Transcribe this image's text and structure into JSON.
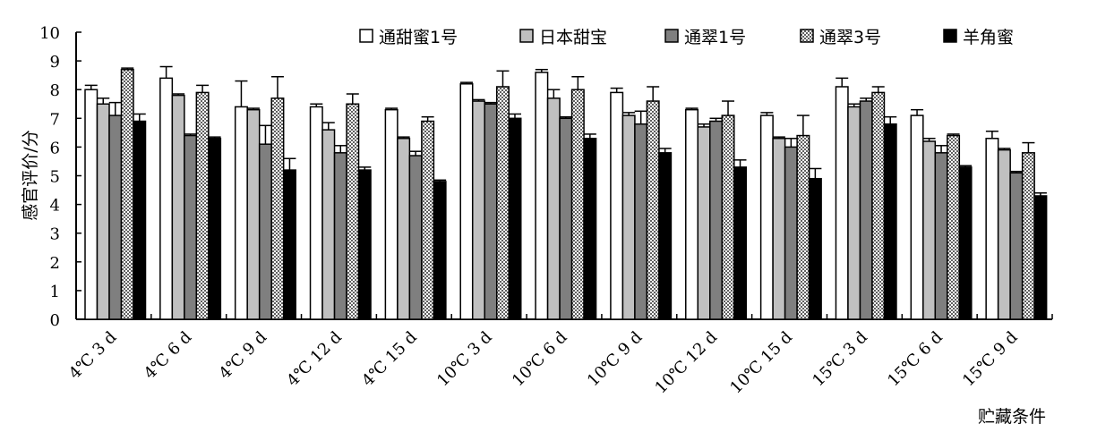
{
  "chart_data": {
    "type": "bar",
    "title": "",
    "xlabel": "贮藏条件",
    "ylabel": "感官评价/分",
    "ylim": [
      0,
      10
    ],
    "yticks": [
      0,
      1,
      2,
      3,
      4,
      5,
      6,
      7,
      8,
      9,
      10
    ],
    "grid": false,
    "legend_position": "top-right",
    "categories": [
      "4℃ 3 d",
      "4℃ 6 d",
      "4℃ 9 d",
      "4℃ 12 d",
      "4℃ 15 d",
      "10℃ 3 d",
      "10℃ 6 d",
      "10℃ 9 d",
      "10℃ 12 d",
      "10℃ 15 d",
      "15℃ 3 d",
      "15℃ 6 d",
      "15℃ 9 d"
    ],
    "series": [
      {
        "name": "通甜蜜1号",
        "fill": "#ffffff",
        "pattern": "solid",
        "values": [
          8.0,
          8.4,
          7.4,
          7.4,
          7.3,
          8.2,
          8.6,
          7.9,
          7.3,
          7.1,
          8.1,
          7.1,
          6.3
        ],
        "errors": [
          0.15,
          0.4,
          0.9,
          0.1,
          0.05,
          0.05,
          0.1,
          0.15,
          0.05,
          0.1,
          0.3,
          0.2,
          0.25
        ]
      },
      {
        "name": "日本甜宝",
        "fill": "#c0c0c0",
        "pattern": "solid",
        "values": [
          7.5,
          7.8,
          7.3,
          6.6,
          6.3,
          7.6,
          7.7,
          7.1,
          6.7,
          6.3,
          7.4,
          6.2,
          5.9
        ],
        "errors": [
          0.2,
          0.05,
          0.05,
          0.25,
          0.05,
          0.05,
          0.3,
          0.1,
          0.1,
          0.05,
          0.1,
          0.1,
          0.05
        ]
      },
      {
        "name": "通翠1号",
        "fill": "#7f7f7f",
        "pattern": "solid",
        "values": [
          7.1,
          6.4,
          6.1,
          5.8,
          5.7,
          7.5,
          7.0,
          6.8,
          6.9,
          6.0,
          7.6,
          5.8,
          5.1
        ],
        "errors": [
          0.45,
          0.05,
          0.65,
          0.25,
          0.15,
          0.05,
          0.05,
          0.45,
          0.1,
          0.3,
          0.1,
          0.25,
          0.05
        ]
      },
      {
        "name": "通翠3号",
        "fill": "#d0d0d0",
        "pattern": "dots",
        "values": [
          8.7,
          7.9,
          7.7,
          7.5,
          6.9,
          8.1,
          8.0,
          7.6,
          7.1,
          6.4,
          7.9,
          6.4,
          5.8
        ],
        "errors": [
          0.05,
          0.25,
          0.75,
          0.35,
          0.15,
          0.55,
          0.45,
          0.5,
          0.5,
          0.7,
          0.2,
          0.05,
          0.35
        ]
      },
      {
        "name": "羊角蜜",
        "fill": "#000000",
        "pattern": "solid",
        "values": [
          6.9,
          6.3,
          5.2,
          5.2,
          4.8,
          7.0,
          6.3,
          5.8,
          5.3,
          4.9,
          6.8,
          5.3,
          4.3
        ],
        "errors": [
          0.25,
          0.05,
          0.4,
          0.1,
          0.05,
          0.15,
          0.15,
          0.15,
          0.25,
          0.35,
          0.25,
          0.05,
          0.1
        ]
      }
    ]
  }
}
